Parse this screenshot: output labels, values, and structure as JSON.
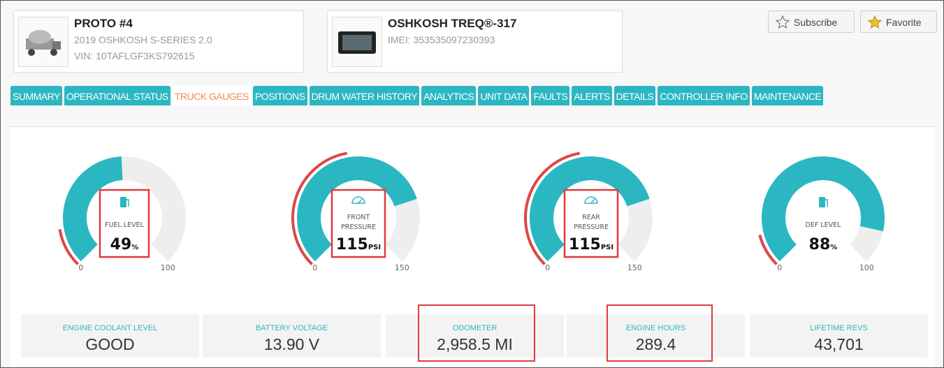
{
  "header": {
    "vehicle": {
      "name": "PROTO #4",
      "model": "2019 OSHKOSH S-SERIES 2.0",
      "vin": "VIN: 10TAFLGF3KS792615"
    },
    "device": {
      "name": "OSHKOSH TREQ®-317",
      "imei": "IMEI: 353535097230393"
    },
    "buttons": [
      "Subscribe",
      "Favorite"
    ]
  },
  "tabs": {
    "items": [
      "SUMMARY",
      "OPERATIONAL STATUS",
      "TRUCK GAUGES",
      "POSITIONS",
      "DRUM WATER HISTORY",
      "ANALYTICS",
      "UNIT DATA",
      "FAULTS",
      "ALERTS",
      "DETAILS",
      "CONTROLLER INFO",
      "MAINTENANCE"
    ],
    "active": 2
  },
  "gauges": [
    {
      "label": [
        "FUEL LEVEL"
      ],
      "value": 49,
      "unit": "%",
      "min": 0,
      "max": 100,
      "color": "#2bb7c2"
    },
    {
      "label": [
        "FRONT",
        "PRESSURE"
      ],
      "value": 115,
      "unit": "PSI",
      "min": 0,
      "max": 150,
      "color": "#2bb7c2"
    },
    {
      "label": [
        "REAR",
        "PRESSURE"
      ],
      "value": 115,
      "unit": "PSI",
      "min": 0,
      "max": 150,
      "color": "#2bb7c2"
    },
    {
      "label": [
        "DEF LEVEL"
      ],
      "value": 88,
      "unit": "%",
      "min": 0,
      "max": 100,
      "color": "#2bb7c2"
    }
  ],
  "stats": [
    {
      "label": "ENGINE COOLANT LEVEL",
      "value": "GOOD"
    },
    {
      "label": "BATTERY VOLTAGE",
      "value": "13.90 V"
    },
    {
      "label": "ODOMETER",
      "value": "2,958.5 MI"
    },
    {
      "label": "ENGINE HOURS",
      "value": "289.4"
    },
    {
      "label": "LIFETIME REVS",
      "value": "43,701"
    }
  ]
}
